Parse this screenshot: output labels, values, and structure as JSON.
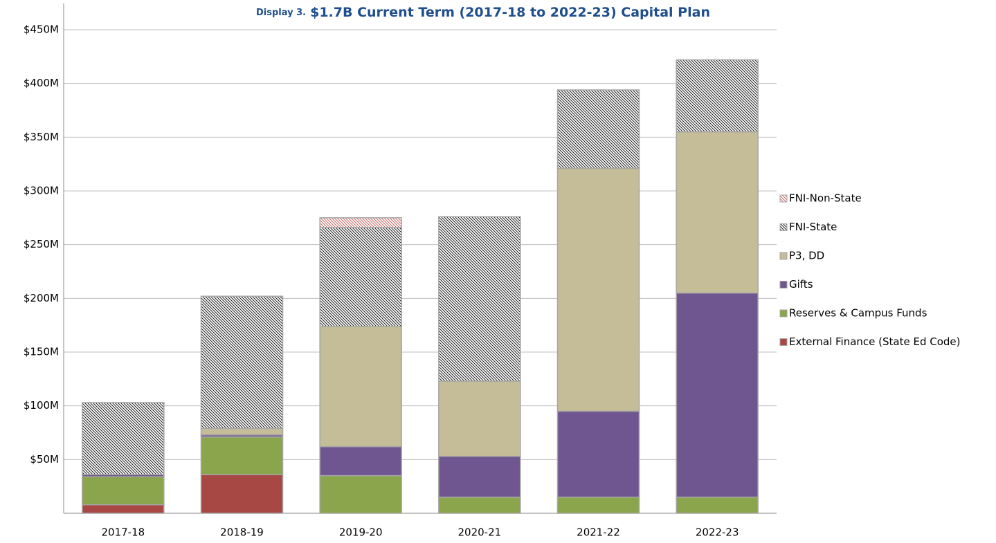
{
  "chart_data": {
    "type": "stacked_bar",
    "label": "Display 3.",
    "title": "$1.7B Current Term (2017-18 to 2022-23) Capital Plan",
    "categories": [
      "2017-18",
      "2018-19",
      "2019-20",
      "2020-21",
      "2021-22",
      "2022-23"
    ],
    "series": [
      {
        "name": "External Finance (State Ed Code)",
        "color": "#a84845",
        "values": [
          8,
          36,
          0,
          0,
          0,
          0
        ]
      },
      {
        "name": "Reserves & Campus Funds",
        "color": "#8aa54b",
        "values": [
          26,
          35,
          35,
          15,
          15,
          15
        ]
      },
      {
        "name": "Gifts",
        "color": "#705690",
        "values": [
          2,
          2,
          27,
          38,
          80,
          190
        ]
      },
      {
        "name": "P3, DD",
        "color": "#c4bd97",
        "values": [
          0,
          6,
          112,
          70,
          226,
          150
        ]
      },
      {
        "name": "FNI-State",
        "color": "#000000",
        "hatch": true,
        "values": [
          67,
          123,
          92,
          153,
          73,
          67
        ]
      },
      {
        "name": "FNI-Non-State",
        "color": "#c0504d",
        "hatch": true,
        "values": [
          0,
          0,
          9,
          0,
          0,
          0
        ]
      }
    ],
    "ylim": [
      0,
      450
    ],
    "yticks": [
      {
        "value": 50,
        "label": "$50M"
      },
      {
        "value": 100,
        "label": "$100M"
      },
      {
        "value": 150,
        "label": "$150M"
      },
      {
        "value": 200,
        "label": "$200M"
      },
      {
        "value": 250,
        "label": "$250M"
      },
      {
        "value": 300,
        "label": "$300M"
      },
      {
        "value": 350,
        "label": "$350M"
      },
      {
        "value": 400,
        "label": "$400M"
      },
      {
        "value": 450,
        "label": "$450M"
      }
    ],
    "grid": true,
    "legend": "right"
  }
}
